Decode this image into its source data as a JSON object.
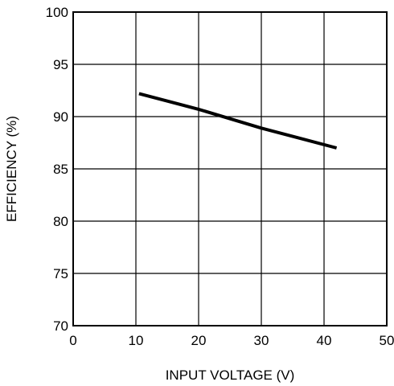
{
  "chart_data": {
    "type": "line",
    "title": "",
    "xlabel": "INPUT VOLTAGE (V)",
    "ylabel": "EFFICIENCY (%)",
    "xlim": [
      0,
      50
    ],
    "ylim": [
      70,
      100
    ],
    "xticks": [
      0,
      10,
      20,
      30,
      40,
      50
    ],
    "yticks": [
      70,
      75,
      80,
      85,
      90,
      95,
      100
    ],
    "grid": true,
    "series": [
      {
        "x": [
          10.5,
          20,
          30,
          42
        ],
        "y": [
          92.2,
          90.7,
          88.9,
          87.0
        ],
        "color": "#000000"
      }
    ]
  }
}
